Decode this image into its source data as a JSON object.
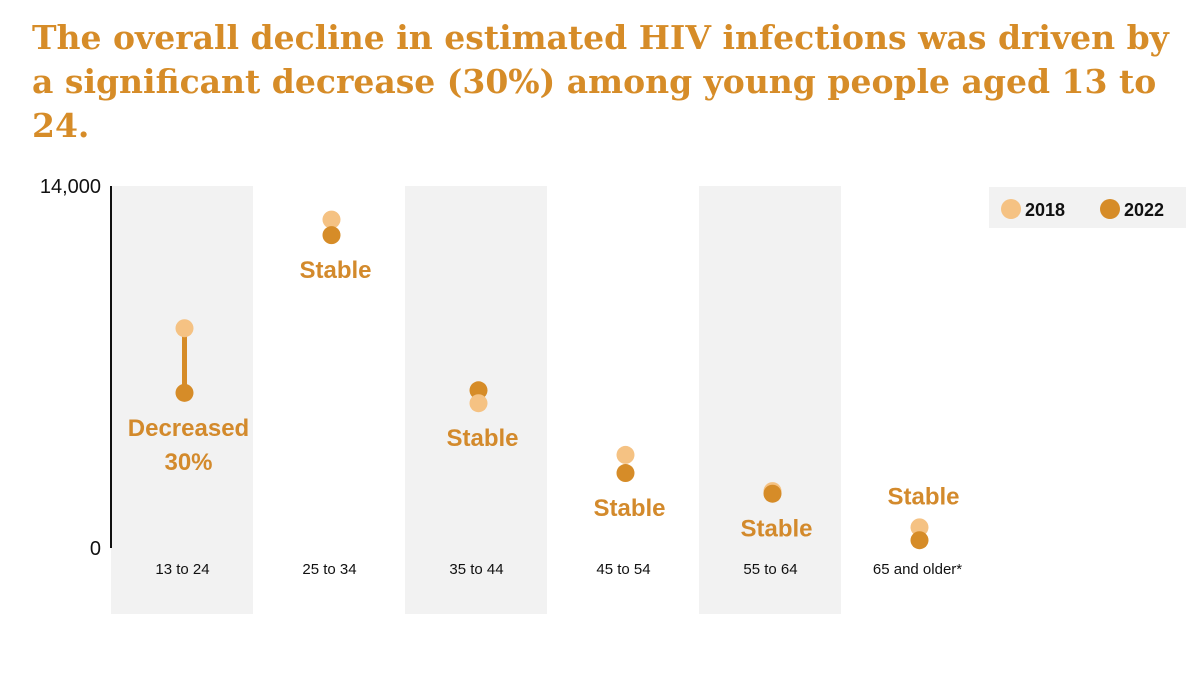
{
  "headline": "The overall decline in estimated HIV infections was driven by a significant decrease (30%) among young people aged 13 to 24.",
  "colors": {
    "y2018": "#f5c283",
    "y2022": "#d68c28",
    "band": "#f2f2f2",
    "annotation": "#d38a2c",
    "axis": "#111111"
  },
  "chart_data": {
    "type": "dot",
    "title": "",
    "xlabel": "",
    "ylabel": "",
    "ylim": [
      0,
      14000
    ],
    "y_ticks": [
      "14,000",
      "0"
    ],
    "categories": [
      "13 to 24",
      "25 to 34",
      "35 to 44",
      "45 to 54",
      "55 to 64",
      "65 and older*"
    ],
    "series": [
      {
        "name": "2018",
        "values": [
          8500,
          12700,
          5600,
          3600,
          2200,
          800
        ]
      },
      {
        "name": "2022",
        "values": [
          6000,
          12100,
          6100,
          2900,
          2100,
          300
        ]
      }
    ],
    "annotations": [
      {
        "lines": [
          "Decreased",
          "30%"
        ],
        "placement": "below"
      },
      {
        "lines": [
          "Stable"
        ],
        "placement": "below"
      },
      {
        "lines": [
          "Stable"
        ],
        "placement": "below"
      },
      {
        "lines": [
          "Stable"
        ],
        "placement": "below"
      },
      {
        "lines": [
          "Stable"
        ],
        "placement": "below"
      },
      {
        "lines": [
          "Stable"
        ],
        "placement": "above"
      }
    ],
    "connector": [
      true,
      false,
      false,
      false,
      false,
      false
    ],
    "legend": {
      "position": "top-right",
      "entries": [
        "2018",
        "2022"
      ]
    }
  }
}
